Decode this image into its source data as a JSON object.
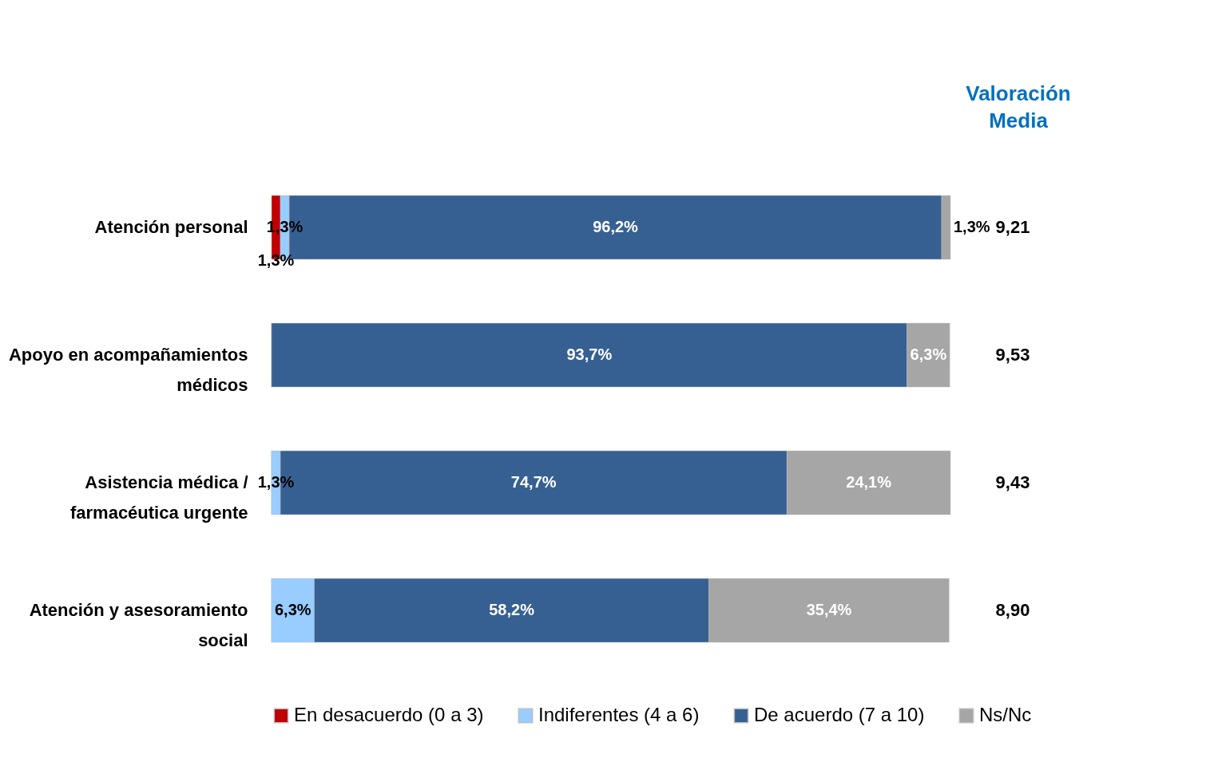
{
  "chart_data": {
    "type": "bar",
    "orientation": "horizontal",
    "stacked": true,
    "legend": "bottom",
    "categories": [
      "Atención personal",
      "Apoyo en acompañamientos médicos",
      "Asistencia médica / farmacéutica urgente",
      "Atención y asesoramiento social"
    ],
    "series": [
      {
        "name": "En desacuerdo (0 a 3)",
        "color": "#c00000",
        "values": [
          1.3,
          0,
          0,
          0
        ],
        "value_labels": [
          "1,3%",
          null,
          null,
          null
        ]
      },
      {
        "name": "Indiferentes (4 a 6)",
        "color": "#99ccff",
        "values": [
          1.3,
          0,
          1.3,
          6.3
        ],
        "value_labels": [
          "1,3%",
          null,
          "1,3%",
          "6,3%"
        ]
      },
      {
        "name": "De acuerdo (7 a 10)",
        "color": "#376092",
        "values": [
          96.2,
          93.7,
          74.7,
          58.2
        ],
        "value_labels": [
          "96,2%",
          "93,7%",
          "74,7%",
          "58,2%"
        ]
      },
      {
        "name": "Ns/Nc",
        "color": "#a6a6a6",
        "values": [
          1.3,
          6.3,
          24.1,
          35.4
        ],
        "value_labels": [
          "1,3%",
          "6,3%",
          "24,1%",
          "35,4%"
        ]
      }
    ],
    "annotations": [
      "Valoración Media",
      "9,21",
      "9,53",
      "9,43",
      "8,90"
    ]
  }
}
